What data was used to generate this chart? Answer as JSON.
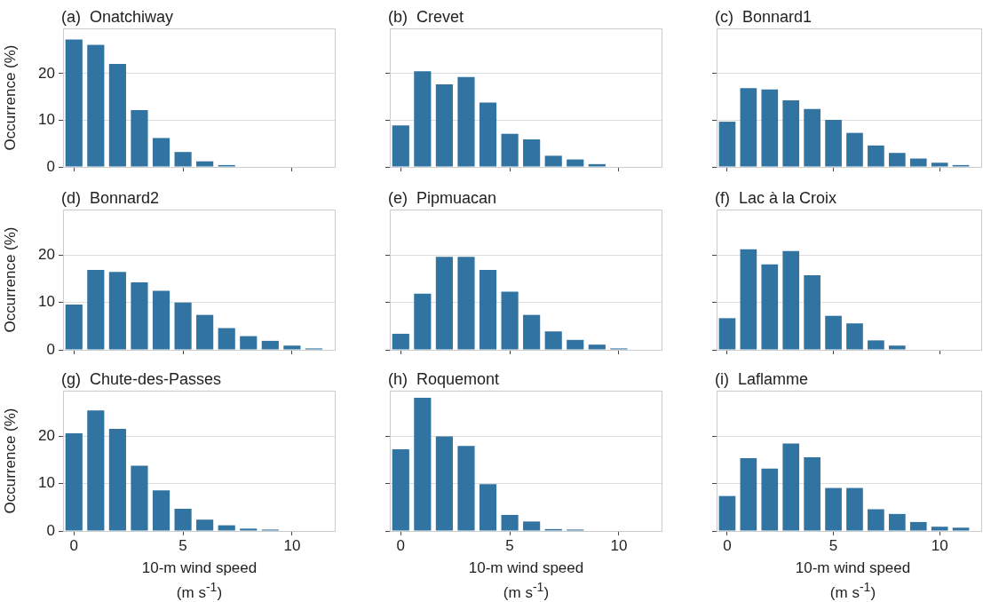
{
  "chart_data": [
    {
      "type": "bar",
      "title": "(a)  Onatchiway",
      "ylabel": "Occurrence (%)",
      "x": [
        0,
        1,
        2,
        3,
        4,
        5,
        6,
        7,
        8,
        9,
        10,
        11
      ],
      "values": [
        27.3,
        26.2,
        22.1,
        12.2,
        6.2,
        3.2,
        1.2,
        0.4,
        0,
        0,
        0,
        0
      ],
      "color": "#3274a1",
      "xlim": [
        -0.5,
        12
      ],
      "xticks": [
        0,
        5,
        10
      ],
      "ylim": [
        0,
        29.7
      ],
      "yticks": [
        0,
        10,
        20
      ],
      "grid": "y",
      "tick_labels": "y"
    },
    {
      "type": "bar",
      "title": "(b)  Crevet",
      "x": [
        0,
        1,
        2,
        3,
        4,
        5,
        6,
        7,
        8,
        9,
        10,
        11
      ],
      "values": [
        8.9,
        20.5,
        17.7,
        19.3,
        13.8,
        7.1,
        5.9,
        2.4,
        1.6,
        0.6,
        0,
        0
      ],
      "color": "#3274a1",
      "xlim": [
        -0.5,
        12
      ],
      "xticks": [
        0,
        5,
        10
      ],
      "ylim": [
        0,
        29.7
      ],
      "yticks": [
        0,
        10,
        20
      ],
      "grid": "y",
      "tick_labels": false
    },
    {
      "type": "bar",
      "title": "(c)  Bonnard1",
      "x": [
        0,
        1,
        2,
        3,
        4,
        5,
        6,
        7,
        8,
        9,
        10,
        11
      ],
      "values": [
        9.7,
        16.9,
        16.6,
        14.3,
        12.4,
        10.1,
        7.3,
        4.6,
        3.0,
        1.8,
        0.9,
        0.4
      ],
      "color": "#3274a1",
      "xlim": [
        -0.5,
        12
      ],
      "xticks": [
        0,
        5,
        10
      ],
      "ylim": [
        0,
        29.7
      ],
      "yticks": [
        0,
        10,
        20
      ],
      "grid": "y",
      "tick_labels": false
    },
    {
      "type": "bar",
      "title": "(d)  Bonnard2",
      "ylabel": "Occurrence (%)",
      "x": [
        0,
        1,
        2,
        3,
        4,
        5,
        6,
        7,
        8,
        9,
        10,
        11
      ],
      "values": [
        9.6,
        16.9,
        16.5,
        14.3,
        12.5,
        10.0,
        7.4,
        4.6,
        2.9,
        1.9,
        0.9,
        0.3
      ],
      "color": "#3274a1",
      "xlim": [
        -0.5,
        12
      ],
      "xticks": [
        0,
        5,
        10
      ],
      "ylim": [
        0,
        29.7
      ],
      "yticks": [
        0,
        10,
        20
      ],
      "grid": "y",
      "tick_labels": "y"
    },
    {
      "type": "bar",
      "title": "(e)  Pipmuacan",
      "x": [
        0,
        1,
        2,
        3,
        4,
        5,
        6,
        7,
        8,
        9,
        10,
        11
      ],
      "values": [
        3.4,
        11.9,
        19.7,
        19.7,
        16.9,
        12.3,
        7.4,
        3.9,
        2.1,
        1.1,
        0.3,
        0
      ],
      "color": "#3274a1",
      "xlim": [
        -0.5,
        12
      ],
      "xticks": [
        0,
        5,
        10
      ],
      "ylim": [
        0,
        29.7
      ],
      "yticks": [
        0,
        10,
        20
      ],
      "grid": "y",
      "tick_labels": false
    },
    {
      "type": "bar",
      "title": "(f)  Lac à la Croix",
      "x": [
        0,
        1,
        2,
        3,
        4,
        5,
        6,
        7,
        8,
        9,
        10,
        11
      ],
      "values": [
        6.7,
        21.3,
        18.1,
        20.9,
        15.8,
        7.2,
        5.6,
        2.0,
        0.9,
        0,
        0,
        0
      ],
      "color": "#3274a1",
      "xlim": [
        -0.5,
        12
      ],
      "xticks": [
        0,
        5,
        10
      ],
      "ylim": [
        0,
        29.7
      ],
      "yticks": [
        0,
        10,
        20
      ],
      "grid": "y",
      "tick_labels": false
    },
    {
      "type": "bar",
      "title": "(g)  Chute-des-Passes",
      "ylabel": "Occurrence (%)",
      "xlabel": "10-m wind speed (m s$^{-1}$)",
      "x": [
        0,
        1,
        2,
        3,
        4,
        5,
        6,
        7,
        8,
        9,
        10,
        11
      ],
      "values": [
        20.7,
        25.5,
        21.6,
        13.8,
        8.6,
        4.7,
        2.4,
        1.2,
        0.5,
        0.3,
        0,
        0
      ],
      "color": "#3274a1",
      "xlim": [
        -0.5,
        12
      ],
      "xticks": [
        0,
        5,
        10
      ],
      "ylim": [
        0,
        29.7
      ],
      "yticks": [
        0,
        10,
        20
      ],
      "grid": "y"
    },
    {
      "type": "bar",
      "title": "(h)  Roquemont",
      "xlabel": "10-m wind speed (m s$^{-1}$)",
      "x": [
        0,
        1,
        2,
        3,
        4,
        5,
        6,
        7,
        8,
        9,
        10,
        11
      ],
      "values": [
        17.3,
        28.2,
        20.0,
        18.0,
        9.9,
        3.4,
        2.0,
        0.4,
        0.3,
        0,
        0,
        0
      ],
      "color": "#3274a1",
      "xlim": [
        -0.5,
        12
      ],
      "xticks": [
        0,
        5,
        10
      ],
      "ylim": [
        0,
        29.7
      ],
      "yticks": [
        0,
        10,
        20
      ],
      "grid": "y",
      "tick_labels": "x"
    },
    {
      "type": "bar",
      "title": "(i)  Laflamme",
      "xlabel": "10-m wind speed (m s$^{-1}$)",
      "x": [
        0,
        1,
        2,
        3,
        4,
        5,
        6,
        7,
        8,
        9,
        10,
        11
      ],
      "values": [
        7.4,
        15.4,
        13.2,
        18.5,
        15.6,
        9.1,
        9.1,
        4.6,
        3.6,
        1.9,
        0.9,
        0.7
      ],
      "color": "#3274a1",
      "xlim": [
        -0.5,
        12
      ],
      "xticks": [
        0,
        5,
        10
      ],
      "ylim": [
        0,
        29.7
      ],
      "yticks": [
        0,
        10,
        20
      ],
      "grid": "y",
      "tick_labels": "x"
    }
  ]
}
